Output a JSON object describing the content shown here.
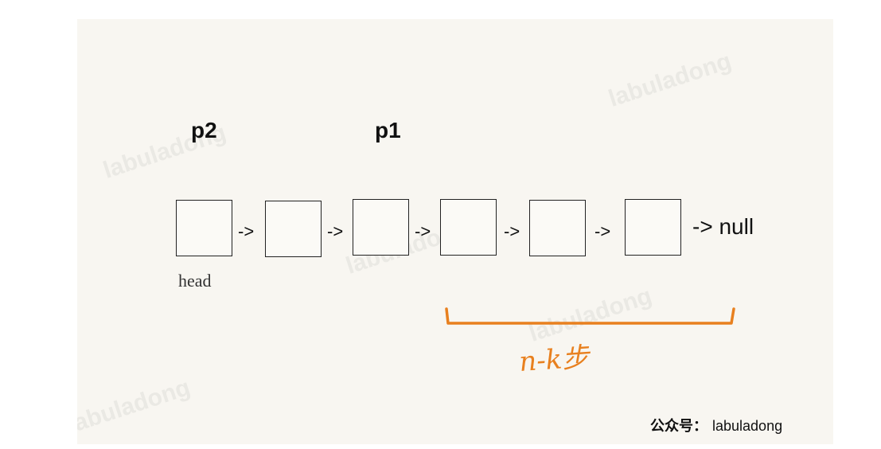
{
  "pointers": {
    "p2": "p2",
    "p1": "p1"
  },
  "nodes": [
    {
      "id": "node-1"
    },
    {
      "id": "node-2"
    },
    {
      "id": "node-3"
    },
    {
      "id": "node-4"
    },
    {
      "id": "node-5"
    },
    {
      "id": "node-6"
    }
  ],
  "arrow_label": "->",
  "null_label": "-> null",
  "head_label": "head",
  "brace_annotation": "n-k步",
  "brace_color": "#e8801f",
  "watermark_text": "labuladong",
  "credit": {
    "prefix": "公众号：",
    "name": "labuladong"
  }
}
